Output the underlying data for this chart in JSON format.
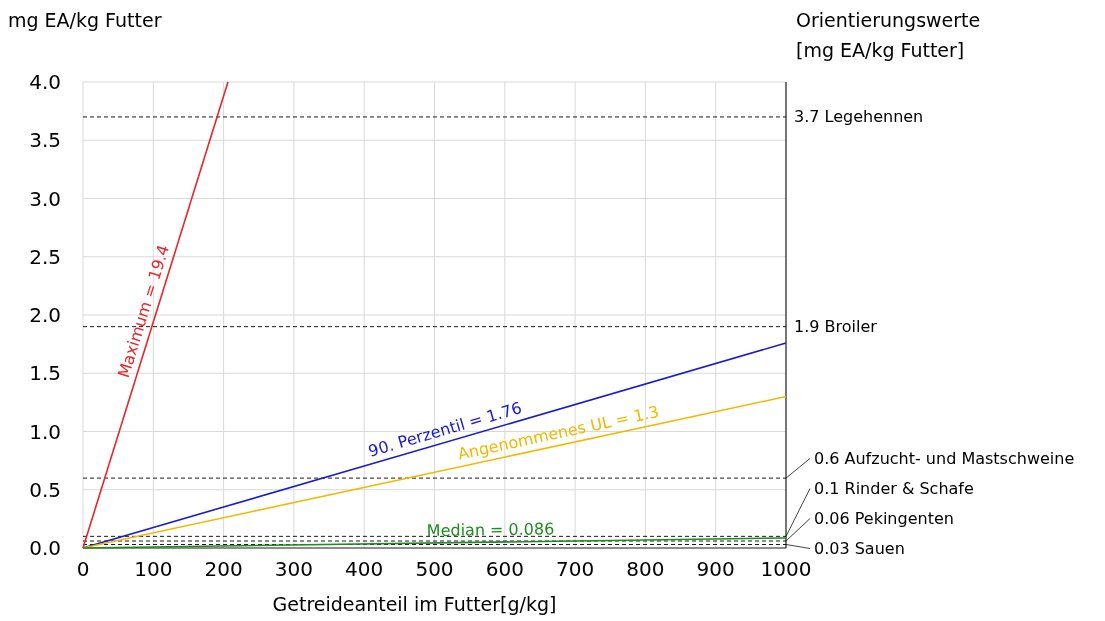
{
  "chart_data": {
    "type": "line",
    "ylabel": "mg EA/kg Futter",
    "xlabel": "Getreideanteil im Futter[g/kg]",
    "y2label": "Orientierungswerte\n[mg EA/kg Futter]",
    "xlim": [
      0,
      1000
    ],
    "xticks": [
      0,
      100,
      200,
      300,
      400,
      500,
      600,
      700,
      800,
      900,
      1000
    ],
    "ylim": [
      0,
      4
    ],
    "yticks": [
      {
        "value": 0,
        "label": "0.0"
      },
      {
        "value": 0.5,
        "label": "0.5"
      },
      {
        "value": 1,
        "label": "1.0"
      },
      {
        "value": 1.5,
        "label": "1.5"
      },
      {
        "value": 2,
        "label": "2.0"
      },
      {
        "value": 2.5,
        "label": "2.5"
      },
      {
        "value": 3,
        "label": "3.0"
      },
      {
        "value": 3.5,
        "label": "3.5"
      },
      {
        "value": 4,
        "label": "4.0"
      }
    ],
    "grid": true,
    "marker": "none",
    "line_style": "solid",
    "series": [
      {
        "name": "Maximum = 19.4",
        "color": "#e8262a",
        "x": [
          0,
          206.2
        ],
        "values": [
          0,
          4
        ]
      },
      {
        "name": "90. Perzentil = 1.76",
        "color": "#1a1ad0",
        "x": [
          0,
          1000
        ],
        "values": [
          0,
          1.76
        ]
      },
      {
        "name": "Angenommenes UL = 1.3",
        "color": "#f2b900",
        "x": [
          0,
          1000
        ],
        "values": [
          0,
          1.3
        ]
      },
      {
        "name": "Median = 0.086",
        "color": "#1e8c1e",
        "x": [
          0,
          1000
        ],
        "values": [
          0,
          0.086
        ]
      }
    ],
    "ref_lines": [
      {
        "axis": "y",
        "value": 3.7,
        "label": "3.7 Legehennen",
        "line_style": "dashed"
      },
      {
        "axis": "y",
        "value": 1.9,
        "label": "1.9 Broiler",
        "line_style": "dashed"
      },
      {
        "axis": "y",
        "value": 0.6,
        "label": "0.6 Aufzucht- und Mastschweine",
        "line_style": "dashed"
      },
      {
        "axis": "y",
        "value": 0.1,
        "label": "0.1 Rinder & Schafe",
        "line_style": "dashed"
      },
      {
        "axis": "y",
        "value": 0.06,
        "label": "0.06 Pekingenten",
        "line_style": "dashed"
      },
      {
        "axis": "y",
        "value": 0.03,
        "label": "0.03 Sauen",
        "line_style": "dashed"
      }
    ]
  }
}
